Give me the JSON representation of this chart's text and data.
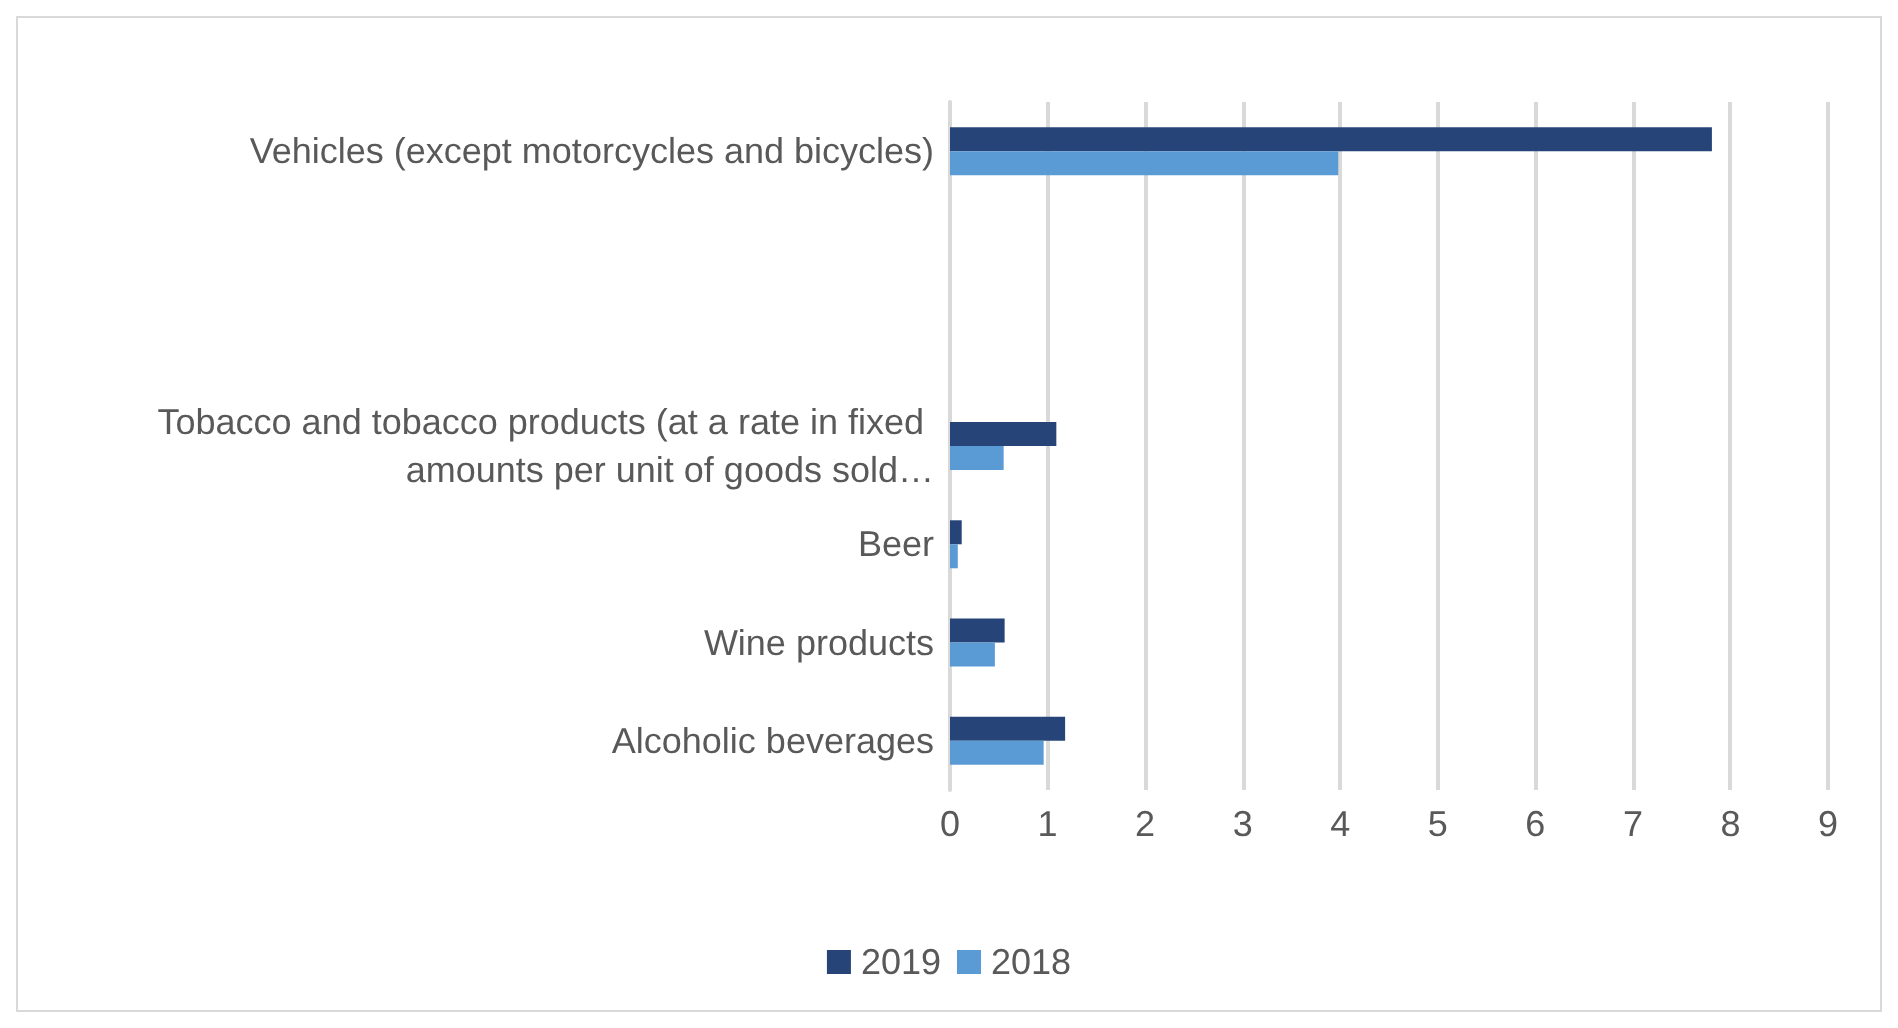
{
  "chart_data": {
    "type": "bar",
    "orientation": "horizontal",
    "categories": [
      "Vehicles (except motorcycles and bicycles)",
      null,
      null,
      "Tobacco and tobacco products (at a rate in fixed amounts per unit of goods sold…",
      "Beer",
      "Wine products",
      "Alcoholic beverages"
    ],
    "series": [
      {
        "name": "2019",
        "color": "#264478",
        "values": [
          7.81,
          null,
          null,
          1.09,
          0.12,
          0.56,
          1.18
        ]
      },
      {
        "name": "2018",
        "color": "#5b9bd5",
        "values": [
          3.98,
          null,
          null,
          0.55,
          0.08,
          0.46,
          0.96
        ]
      }
    ],
    "xlim": [
      0,
      9
    ],
    "xticks": [
      0,
      1,
      2,
      3,
      4,
      5,
      6,
      7,
      8,
      9
    ],
    "grid": "x",
    "legend": "bottom"
  }
}
